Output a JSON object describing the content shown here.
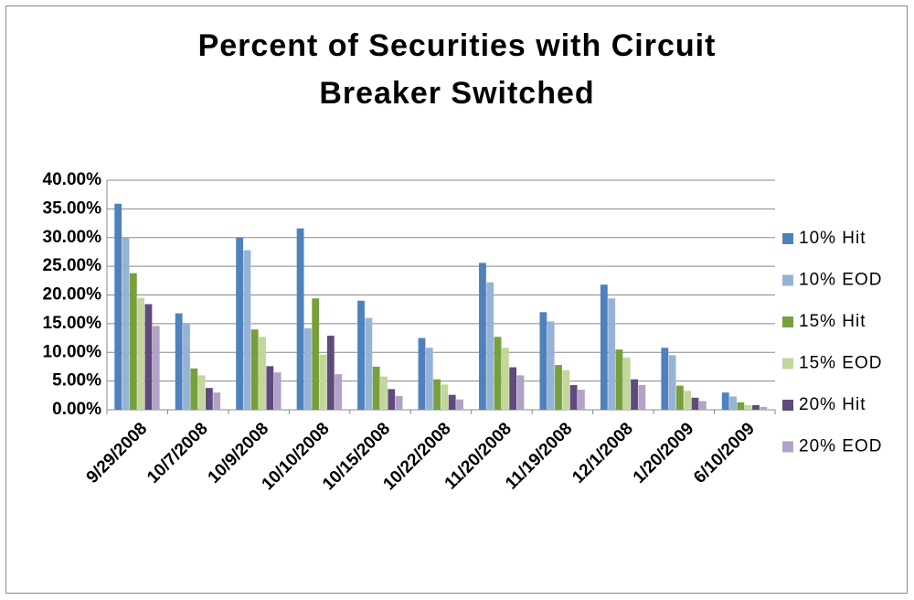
{
  "chart_data": {
    "type": "bar",
    "title": "Percent of Securities with Circuit Breaker Switched",
    "categories": [
      "9/29/2008",
      "10/7/2008",
      "10/9/2008",
      "10/10/2008",
      "10/15/2008",
      "10/22/2008",
      "11/20/2008",
      "11/19/2008",
      "12/1/2008",
      "1/20/2009",
      "6/10/2009"
    ],
    "series": [
      {
        "name": "10% Hit",
        "color": "#4f81bd",
        "values": [
          35.9,
          16.8,
          30.0,
          31.6,
          19.0,
          12.5,
          25.6,
          17.0,
          21.8,
          10.8,
          3.0
        ]
      },
      {
        "name": "10% EOD",
        "color": "#95b3d7",
        "values": [
          30.1,
          15.0,
          27.8,
          14.2,
          16.0,
          10.8,
          22.2,
          15.4,
          19.4,
          9.5,
          2.3
        ]
      },
      {
        "name": "15% Hit",
        "color": "#77a03c",
        "values": [
          23.8,
          7.2,
          14.0,
          19.4,
          7.5,
          5.3,
          12.7,
          7.8,
          10.5,
          4.2,
          1.3
        ]
      },
      {
        "name": "15% EOD",
        "color": "#c3d69b",
        "values": [
          19.5,
          6.0,
          12.7,
          9.6,
          5.8,
          4.4,
          10.8,
          6.9,
          9.1,
          3.3,
          0.8
        ]
      },
      {
        "name": "20% Hit",
        "color": "#604a7b",
        "values": [
          18.4,
          3.8,
          7.6,
          12.9,
          3.6,
          2.6,
          7.4,
          4.3,
          5.3,
          2.1,
          0.8
        ]
      },
      {
        "name": "20% EOD",
        "color": "#b3a2c7",
        "values": [
          14.6,
          3.0,
          6.5,
          6.2,
          2.4,
          1.8,
          6.0,
          3.5,
          4.3,
          1.5,
          0.5
        ]
      }
    ],
    "ylim": [
      0,
      40
    ],
    "yticks": [
      {
        "value": 0,
        "label": "0.00%"
      },
      {
        "value": 5,
        "label": "5.00%"
      },
      {
        "value": 10,
        "label": "10.00%"
      },
      {
        "value": 15,
        "label": "15.00%"
      },
      {
        "value": 20,
        "label": "20.00%"
      },
      {
        "value": 25,
        "label": "25.00%"
      },
      {
        "value": 30,
        "label": "30.00%"
      },
      {
        "value": 35,
        "label": "35.00%"
      },
      {
        "value": 40,
        "label": "40.00%"
      }
    ],
    "grid": true,
    "legend": "right"
  }
}
